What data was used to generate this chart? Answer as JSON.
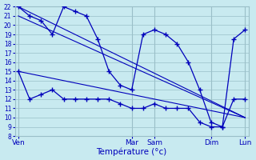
{
  "background_color": "#c8eaf0",
  "grid_color": "#9abfc8",
  "line_color": "#0000bb",
  "xlabel": "Température (°c)",
  "ylim": [
    8,
    22
  ],
  "yticks": [
    8,
    9,
    10,
    11,
    12,
    13,
    14,
    15,
    16,
    17,
    18,
    19,
    20,
    21,
    22
  ],
  "xlim": [
    0,
    20
  ],
  "day_tick_pos": [
    0,
    10,
    12,
    17,
    20
  ],
  "day_labels": [
    "Ven",
    "Mar",
    "Sam",
    "Dim",
    "Lun"
  ],
  "vline_positions": [
    0,
    10,
    12,
    17,
    20
  ],
  "s1_x": [
    0,
    1,
    2,
    3,
    4,
    5,
    6,
    7,
    8,
    9,
    10,
    11,
    12,
    13,
    14,
    15,
    16,
    17,
    18,
    19,
    20
  ],
  "s1_y": [
    22,
    21,
    20.5,
    19,
    22,
    21.5,
    21,
    18.5,
    15,
    13.5,
    13,
    19,
    19.5,
    19,
    18,
    16,
    13,
    9.5,
    9,
    18.5,
    19.5
  ],
  "s2_x": [
    0,
    1,
    2,
    3,
    4,
    5,
    6,
    7,
    8,
    9,
    10,
    11,
    12,
    13,
    14,
    15,
    16,
    17,
    18,
    19,
    20
  ],
  "s2_y": [
    15,
    12,
    12.5,
    13,
    12,
    12,
    12,
    12,
    12,
    11.5,
    11,
    11,
    11.5,
    11,
    11,
    11,
    9.5,
    9,
    9,
    12,
    12
  ],
  "trend1_x": [
    0,
    20
  ],
  "trend1_y": [
    22,
    10
  ],
  "trend2_x": [
    0,
    20
  ],
  "trend2_y": [
    21,
    10
  ],
  "trend3_x": [
    0,
    20
  ],
  "trend3_y": [
    15,
    10
  ],
  "s3_x": [
    20
  ],
  "s3_y": [
    10
  ],
  "s4_x": [
    20
  ],
  "s4_y": [
    10
  ]
}
